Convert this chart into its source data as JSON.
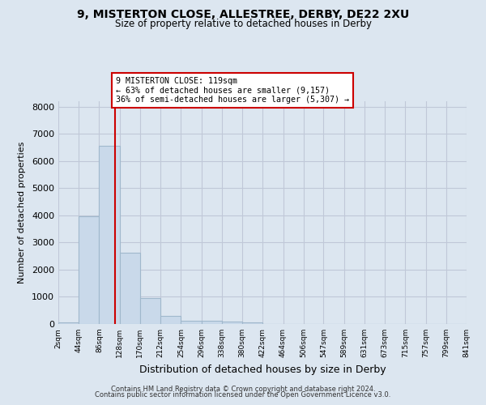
{
  "title_line1": "9, MISTERTON CLOSE, ALLESTREE, DERBY, DE22 2XU",
  "title_line2": "Size of property relative to detached houses in Derby",
  "xlabel": "Distribution of detached houses by size in Derby",
  "ylabel": "Number of detached properties",
  "annotation_line1": "9 MISTERTON CLOSE: 119sqm",
  "annotation_line2": "← 63% of detached houses are smaller (9,157)",
  "annotation_line3": "36% of semi-detached houses are larger (5,307) →",
  "property_size_sqm": 119,
  "bin_edges": [
    2,
    44,
    86,
    128,
    170,
    212,
    254,
    296,
    338,
    380,
    422,
    464,
    506,
    547,
    589,
    631,
    673,
    715,
    757,
    799,
    841
  ],
  "bar_heights": [
    70,
    3980,
    6560,
    2620,
    950,
    310,
    120,
    120,
    90,
    70,
    0,
    0,
    0,
    0,
    0,
    0,
    0,
    0,
    0,
    0
  ],
  "bar_color": "#c9d9ea",
  "bar_edgecolor": "#a0b8cc",
  "vline_color": "#cc0000",
  "vline_x": 119,
  "annotation_box_edgecolor": "#cc0000",
  "annotation_box_facecolor": "#ffffff",
  "grid_color": "#c0c8d8",
  "background_color": "#dce6f0",
  "plot_bg_color": "#dce6f0",
  "ylim": [
    0,
    8200
  ],
  "yticks": [
    0,
    1000,
    2000,
    3000,
    4000,
    5000,
    6000,
    7000,
    8000
  ],
  "footer_line1": "Contains HM Land Registry data © Crown copyright and database right 2024.",
  "footer_line2": "Contains public sector information licensed under the Open Government Licence v3.0."
}
